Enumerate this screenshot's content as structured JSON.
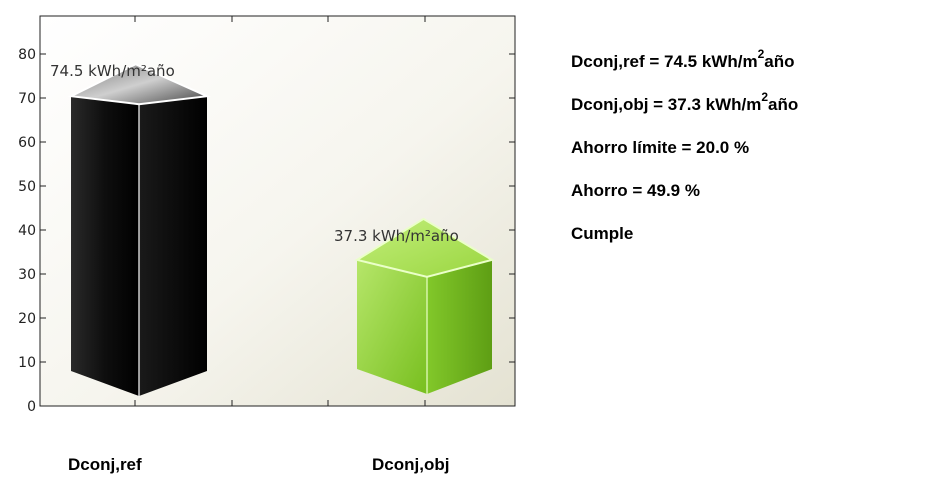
{
  "chart_data": {
    "type": "bar",
    "categories": [
      "Dconj,ref",
      "Dconj,obj"
    ],
    "values": [
      74.5,
      37.3
    ],
    "data_labels": [
      "74.5  kWh/m²año",
      "37.3  kWh/m²año"
    ],
    "ylim": [
      0,
      90
    ],
    "yticks": [
      0,
      10,
      20,
      30,
      40,
      50,
      60,
      70,
      80
    ],
    "bar_colors": [
      "#0a0a0a",
      "#86cc2a"
    ],
    "title": "",
    "xlabel": "",
    "ylabel": ""
  },
  "summary": {
    "ref": {
      "prefix": "Dconj,ref = 74.5 kWh/m",
      "sup": "2",
      "suffix": "año"
    },
    "obj": {
      "prefix": "Dconj,obj = 37.3 kWh/m",
      "sup": "2",
      "suffix": "año"
    },
    "limit": "Ahorro límite = 20.0 %",
    "saving": "Ahorro = 49.9 %",
    "verdict": "Cumple"
  }
}
